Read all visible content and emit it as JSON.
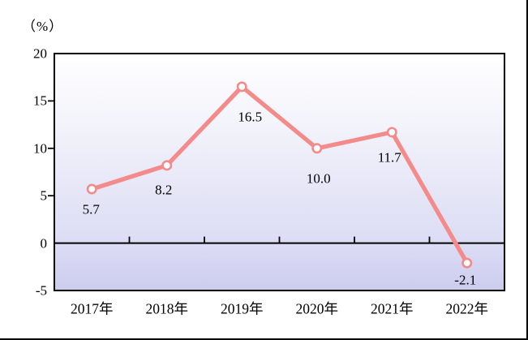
{
  "unit_label": "（%）",
  "chart_data": {
    "type": "line",
    "title": "",
    "categories": [
      "2017年",
      "2018年",
      "2019年",
      "2020年",
      "2021年",
      "2022年"
    ],
    "values": [
      5.7,
      8.2,
      16.5,
      10.0,
      11.7,
      -2.1
    ],
    "point_labels": [
      "5.7",
      "8.2",
      "16.5",
      "10.0",
      "11.7",
      "-2.1"
    ],
    "xlabel": "",
    "ylabel": "（%）",
    "ylim": [
      -5,
      20
    ],
    "yticks": [
      20,
      15,
      10,
      5,
      0,
      -5
    ],
    "legend": "none",
    "grid": false,
    "zero_line": true,
    "colors": {
      "line": "#F48B8B",
      "marker_fill": "#FFFFFF",
      "axis": "#000000",
      "text": "#000000",
      "plot_bg_top": "#FFFFFF",
      "plot_bg_bottom": "#CCCCEE"
    }
  }
}
